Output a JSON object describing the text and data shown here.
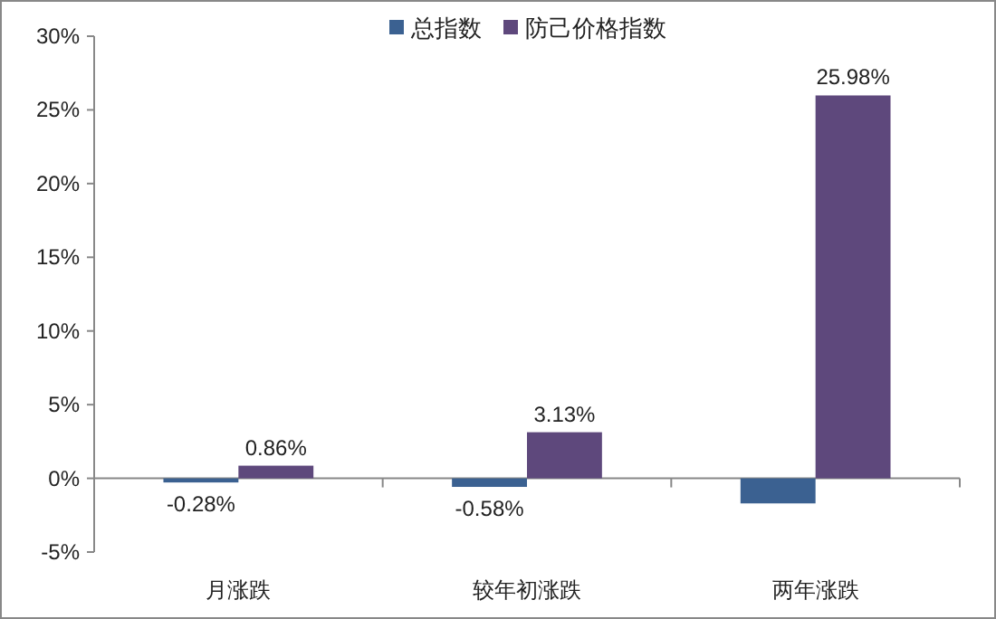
{
  "chart_data": {
    "type": "bar",
    "categories": [
      "月涨跌",
      "较年初涨跌",
      "两年涨跌"
    ],
    "series": [
      {
        "name": "总指数",
        "color": "#3b6191",
        "values": [
          -0.28,
          -0.58,
          -1.7
        ],
        "value_labels": [
          "-0.28%",
          "-0.58%",
          null
        ]
      },
      {
        "name": "防己价格指数",
        "color": "#5e487c",
        "values": [
          0.86,
          3.13,
          25.98
        ],
        "value_labels": [
          "0.86%",
          "3.13%",
          "25.98%"
        ]
      }
    ],
    "ylim": [
      -5,
      30
    ],
    "yticks": [
      {
        "value": -5,
        "label": "-5%"
      },
      {
        "value": 0,
        "label": "0%"
      },
      {
        "value": 5,
        "label": "5%"
      },
      {
        "value": 10,
        "label": "10%"
      },
      {
        "value": 15,
        "label": "15%"
      },
      {
        "value": 20,
        "label": "20%"
      },
      {
        "value": 25,
        "label": "25%"
      },
      {
        "value": 30,
        "label": "30%"
      }
    ],
    "legend": "top"
  }
}
